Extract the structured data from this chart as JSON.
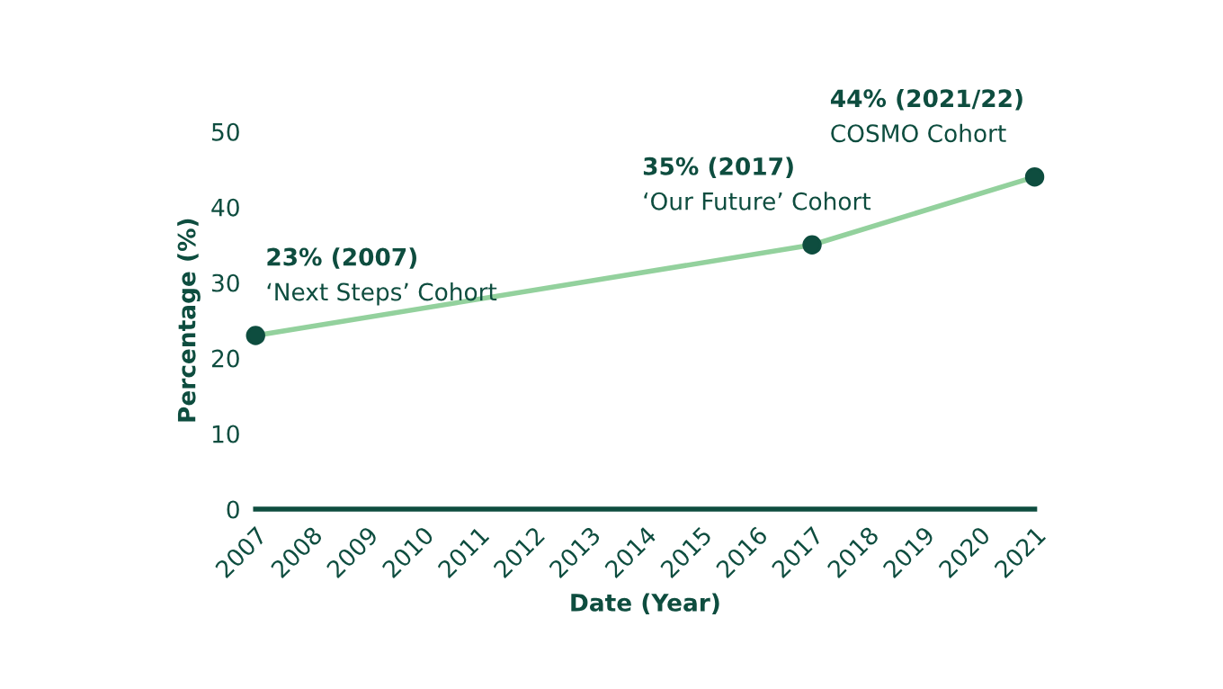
{
  "chart_data": {
    "type": "line",
    "xlabel": "Date (Year)",
    "ylabel": "Percentage (%)",
    "x": [
      2007,
      2017,
      2021
    ],
    "series": [
      {
        "color": "#93d19d",
        "colors": [
          "#0e4d3f",
          "#0e4d3f",
          "#0e4d3f"
        ],
        "values": [
          23,
          35,
          44
        ]
      }
    ],
    "xlim": [
      2007,
      2021
    ],
    "xticks": [
      2007,
      2008,
      2009,
      2010,
      2011,
      2012,
      2013,
      2014,
      2015,
      2016,
      2017,
      2018,
      2019,
      2020,
      2021
    ],
    "ylim": [
      0,
      50
    ],
    "yticks": [
      0,
      10,
      20,
      30,
      40,
      50
    ],
    "marker": "circle",
    "grid": false,
    "legend": false,
    "annotations": [
      {
        "text": "23% (2007)\n‘Next Steps’ Cohort",
        "x": 2007,
        "y": 23
      },
      {
        "text": "35% (2017)\n‘Our Future’ Cohort",
        "x": 2017,
        "y": 35
      },
      {
        "text": "44% (2021/22)\nCOSMO Cohort",
        "x": 2021,
        "y": 44
      }
    ]
  }
}
